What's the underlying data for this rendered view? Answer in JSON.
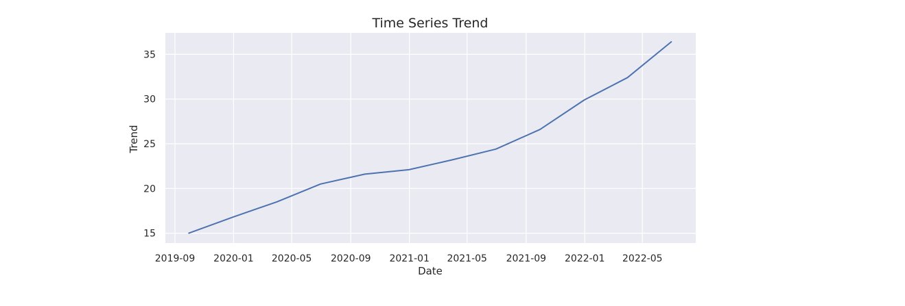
{
  "chart_data": {
    "type": "line",
    "title": "Time Series Trend",
    "xlabel": "Date",
    "ylabel": "Trend",
    "x_tick_labels": [
      "2019-09",
      "2020-01",
      "2020-05",
      "2020-09",
      "2021-01",
      "2021-05",
      "2021-09",
      "2022-01",
      "2022-05"
    ],
    "y_ticks": [
      15,
      20,
      25,
      30,
      35
    ],
    "x_range": [
      "2019-08-12",
      "2022-08-20"
    ],
    "ylim": [
      13.9,
      37.4
    ],
    "grid": true,
    "series": [
      {
        "color": "#4c72b0",
        "x": [
          "2019-09-30",
          "2019-12-31",
          "2020-03-31",
          "2020-06-30",
          "2020-09-30",
          "2020-12-31",
          "2021-03-31",
          "2021-06-30",
          "2021-09-30",
          "2021-12-31",
          "2022-03-31",
          "2022-06-30"
        ],
        "values": [
          15.0,
          16.8,
          18.5,
          20.5,
          21.6,
          22.1,
          23.2,
          24.4,
          26.6,
          29.9,
          32.4,
          36.4
        ]
      }
    ],
    "colors": {
      "background": "#eaeaf2",
      "grid": "#ffffff",
      "line": "#4c72b0"
    }
  }
}
